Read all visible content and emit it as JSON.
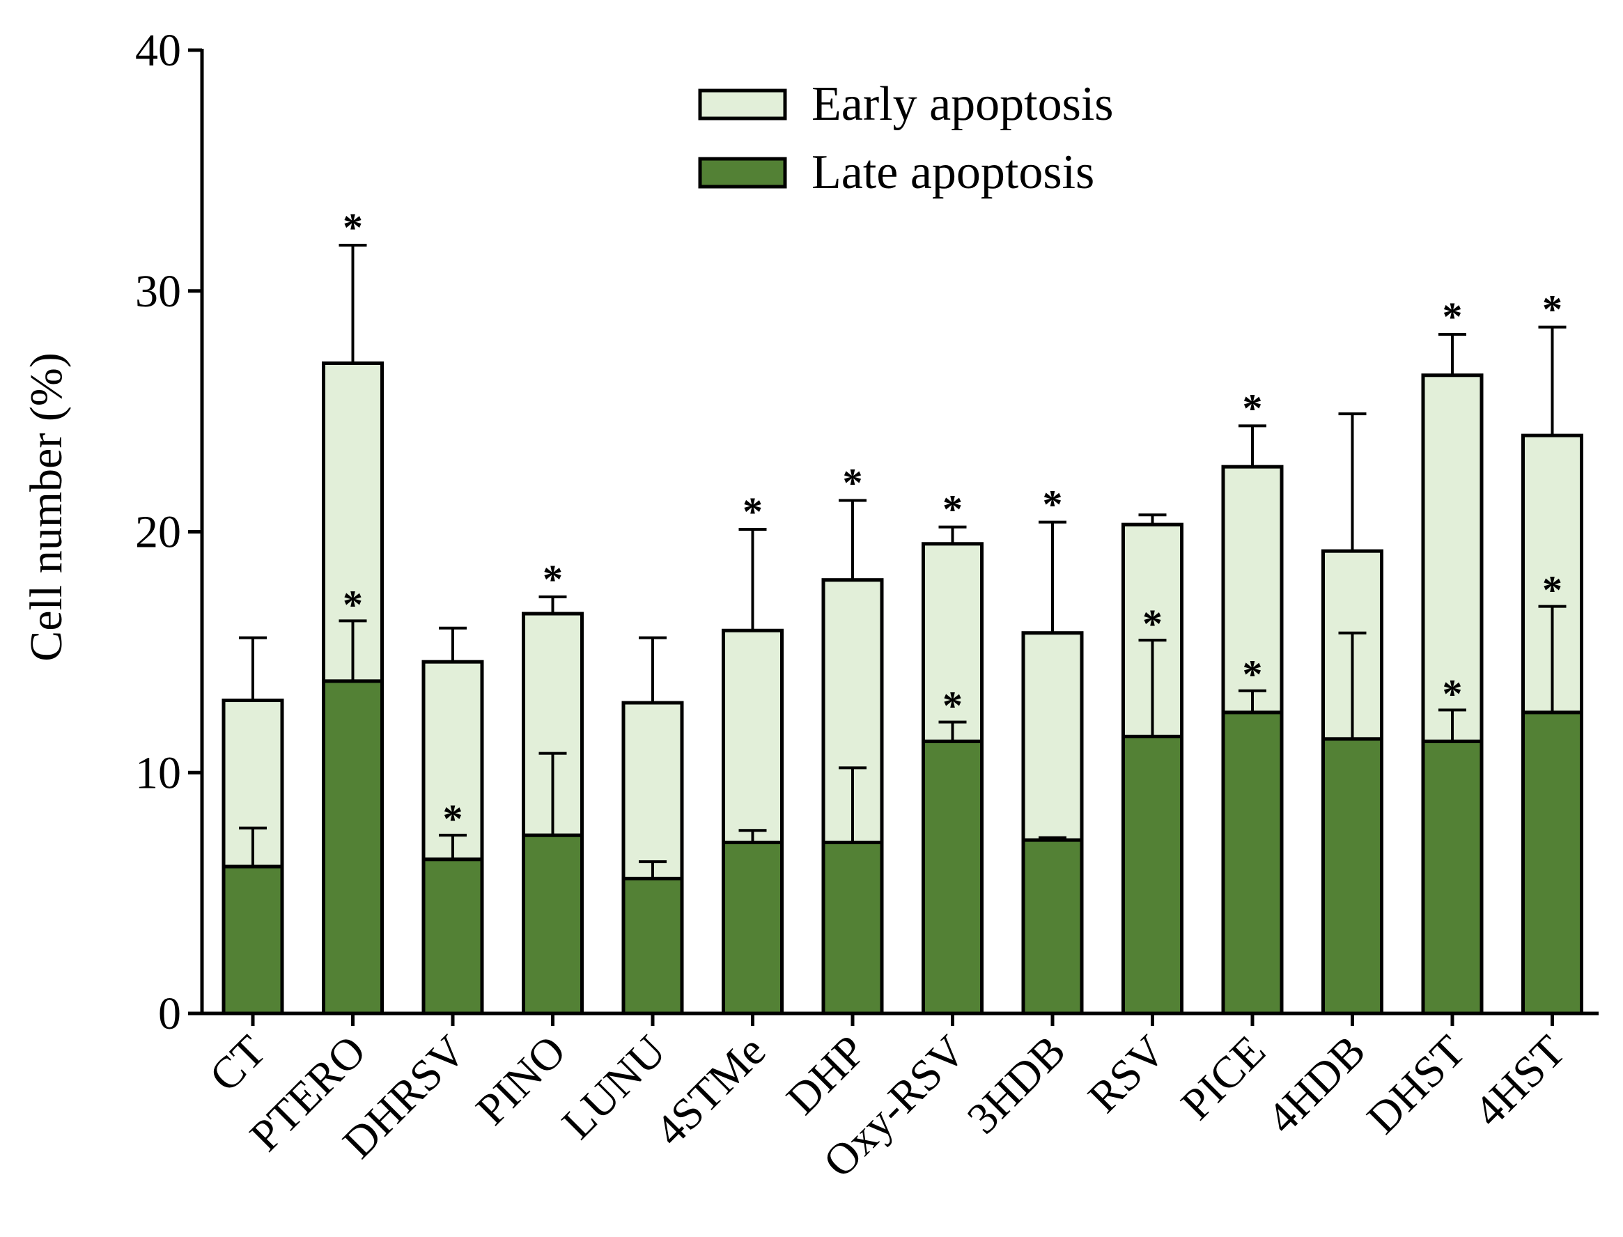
{
  "colors": {
    "early": "#e2efd9",
    "late": "#538135",
    "stroke": "#000000"
  },
  "chart_data": {
    "type": "bar",
    "stacked": true,
    "title": "",
    "xlabel": "",
    "ylabel": "Cell number (%)",
    "ylim": [
      0,
      40
    ],
    "yticks": [
      0,
      10,
      20,
      30,
      40
    ],
    "grid": false,
    "legend_position": "top-right",
    "categories": [
      "CT",
      "PTERO",
      "DHRSV",
      "PINO",
      "LUNU",
      "4STMe",
      "DHP",
      "Oxy-RSV",
      "3HDB",
      "RSV",
      "PICE",
      "4HDB",
      "DHST",
      "4HST"
    ],
    "series": [
      {
        "name": "Late apoptosis",
        "values": [
          6.1,
          13.8,
          6.4,
          7.4,
          5.6,
          7.1,
          7.1,
          11.3,
          7.2,
          11.5,
          12.5,
          11.4,
          11.3,
          12.5
        ],
        "errors": [
          1.6,
          2.5,
          1.0,
          3.4,
          0.7,
          0.5,
          3.1,
          0.8,
          0.1,
          4.0,
          0.9,
          4.4,
          1.3,
          4.4
        ],
        "significant": [
          false,
          true,
          true,
          false,
          false,
          false,
          false,
          true,
          false,
          true,
          true,
          false,
          true,
          true
        ]
      },
      {
        "name": "Early apoptosis",
        "values": [
          6.9,
          13.2,
          8.2,
          9.2,
          7.3,
          8.8,
          10.9,
          8.2,
          8.6,
          8.8,
          10.2,
          7.8,
          15.2,
          11.5
        ],
        "errors": [
          2.6,
          4.9,
          1.4,
          0.7,
          2.7,
          4.2,
          3.3,
          0.7,
          4.6,
          0.4,
          1.7,
          5.7,
          1.7,
          4.5
        ],
        "significant": [
          false,
          true,
          false,
          true,
          false,
          true,
          true,
          true,
          true,
          false,
          true,
          false,
          true,
          true
        ]
      }
    ],
    "significance_marker": "*"
  }
}
